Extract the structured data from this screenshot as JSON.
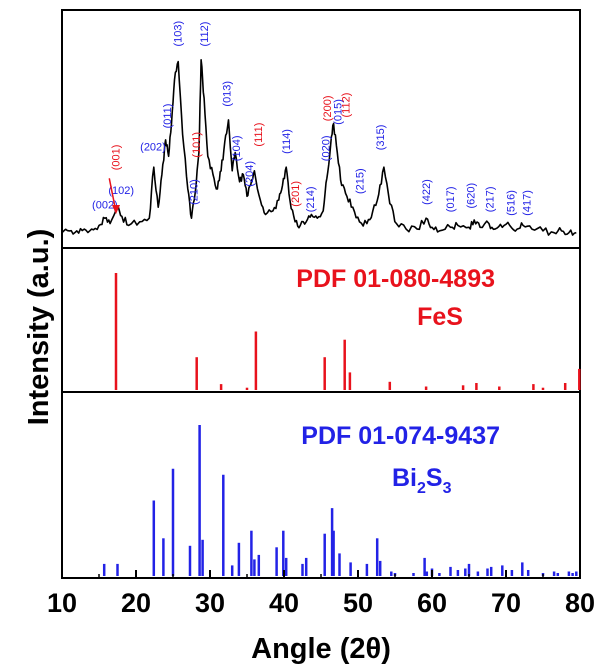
{
  "chart_data": {
    "type": "line",
    "xlabel": "Angle (2θ)",
    "ylabel": "Intensity (a.u.)",
    "xlim": [
      10,
      80
    ],
    "xticks": [
      "10",
      "20",
      "30",
      "40",
      "50",
      "60",
      "70",
      "80"
    ],
    "colors": {
      "pattern": "#000000",
      "fes": "#e8121c",
      "bi2s3": "#2222e6",
      "axes": "#000000"
    },
    "series": [
      {
        "panel": "experimental",
        "color": "#000000",
        "x": [
          10,
          11,
          12,
          13,
          14,
          15,
          15.8,
          16.5,
          17.4,
          18.1,
          19,
          20.5,
          21.8,
          22.4,
          23.0,
          23.5,
          24.0,
          24.4,
          24.8,
          25.2,
          25.7,
          26.3,
          27.0,
          27.5,
          28.0,
          28.5,
          28.8,
          29.2,
          29.7,
          30.4,
          31.0,
          31.5,
          32.0,
          32.5,
          33.0,
          33.4,
          34.0,
          34.5,
          35.0,
          35.5,
          36.0,
          36.8,
          37.5,
          38.5,
          39.3,
          39.8,
          40.3,
          40.8,
          41.5,
          42.2,
          43.0,
          43.7,
          44.5,
          45.3,
          45.8,
          46.3,
          46.7,
          47.2,
          47.8,
          48.5,
          49.3,
          50.2,
          51.2,
          52.0,
          52.8,
          53.5,
          54.3,
          55.2,
          56.5,
          58.0,
          59.2,
          60.0,
          61.0,
          62.5,
          63.5,
          65.0,
          65.7,
          66.5,
          67.7,
          68.5,
          69.5,
          70.5,
          71.5,
          72.3,
          73.5,
          75.0,
          76.5,
          77.5,
          78.5,
          79.5
        ],
        "y": [
          4,
          5,
          5,
          6,
          6,
          8,
          12,
          9,
          18,
          13,
          8,
          10,
          12,
          40,
          18,
          36,
          55,
          46,
          64,
          88,
          98,
          58,
          28,
          12,
          26,
          48,
          99,
          78,
          46,
          36,
          28,
          38,
          54,
          66,
          38,
          48,
          32,
          36,
          24,
          30,
          38,
          22,
          14,
          16,
          22,
          30,
          40,
          22,
          10,
          8,
          10,
          14,
          12,
          16,
          34,
          52,
          64,
          48,
          30,
          24,
          18,
          10,
          9,
          16,
          25,
          40,
          20,
          9,
          6,
          6,
          12,
          7,
          5,
          7,
          8,
          7,
          11,
          7,
          9,
          6,
          7,
          8,
          6,
          8,
          6,
          5,
          4,
          5,
          4,
          4
        ]
      },
      {
        "panel": "reference",
        "name": "FeS",
        "color": "#e8121c",
        "positions": [
          17.3,
          28.2,
          31.5,
          35.0,
          36.2,
          45.5,
          48.2,
          48.9,
          54.3,
          59.2,
          64.2,
          66.0,
          69.1,
          73.7,
          75.0,
          78.0,
          79.9
        ],
        "values": [
          100,
          28,
          5,
          2,
          50,
          28,
          43,
          15,
          7,
          3,
          4,
          6,
          3,
          5,
          2,
          6,
          18
        ]
      },
      {
        "panel": "reference",
        "name": "Bi2S3",
        "color": "#2222e6",
        "positions": [
          15.7,
          17.5,
          22.4,
          23.7,
          25.0,
          27.3,
          28.6,
          29.0,
          31.8,
          33.0,
          33.9,
          35.6,
          36.0,
          36.6,
          39.0,
          39.9,
          40.3,
          42.5,
          43.0,
          45.5,
          46.5,
          46.7,
          47.5,
          49.0,
          51.2,
          52.6,
          53.0,
          54.5,
          55.0,
          57.5,
          59.0,
          59.3,
          60.0,
          61.0,
          62.5,
          63.5,
          64.5,
          65.0,
          66.2,
          67.5,
          68.0,
          69.5,
          70.8,
          72.2,
          73.0,
          75.0,
          76.5,
          77.0,
          78.5,
          79.0,
          79.5
        ],
        "values": [
          8,
          8,
          50,
          25,
          71,
          20,
          100,
          24,
          67,
          7,
          22,
          30,
          11,
          14,
          19,
          30,
          12,
          8,
          12,
          28,
          45,
          30,
          15,
          9,
          8,
          25,
          10,
          3,
          2,
          2,
          12,
          3,
          5,
          2,
          6,
          4,
          5,
          8,
          3,
          5,
          6,
          7,
          4,
          9,
          4,
          2,
          3,
          2,
          3,
          2,
          3
        ]
      }
    ],
    "peak_labels": [
      {
        "text": "(002)",
        "x": 15.8,
        "color": "#2222e6",
        "vertical": false,
        "level": 14
      },
      {
        "text": "(102)",
        "x": 18.0,
        "color": "#2222e6",
        "vertical": false,
        "level": 22
      },
      {
        "text": "(001)",
        "x": 17.2,
        "color": "#e8121c",
        "vertical": true,
        "level": 35
      },
      {
        "text": "(202)",
        "x": 22.3,
        "color": "#2222e6",
        "vertical": false,
        "level": 46
      },
      {
        "text": "(011)",
        "x": 24.2,
        "color": "#2222e6",
        "vertical": true,
        "level": 58
      },
      {
        "text": "(103)",
        "x": 25.6,
        "color": "#2222e6",
        "vertical": true,
        "level": 103
      },
      {
        "text": "(210)",
        "x": 27.8,
        "color": "#2222e6",
        "vertical": true,
        "level": 16
      },
      {
        "text": "(101)",
        "x": 28.1,
        "color": "#e8121c",
        "vertical": true,
        "level": 42
      },
      {
        "text": "(112)",
        "x": 29.2,
        "color": "#2222e6",
        "vertical": true,
        "level": 103
      },
      {
        "text": "(013)",
        "x": 32.2,
        "color": "#2222e6",
        "vertical": true,
        "level": 70
      },
      {
        "text": "(104)",
        "x": 33.5,
        "color": "#2222e6",
        "vertical": true,
        "level": 40
      },
      {
        "text": "(204)",
        "x": 35.3,
        "color": "#2222e6",
        "vertical": true,
        "level": 26
      },
      {
        "text": "(111)",
        "x": 36.5,
        "color": "#e8121c",
        "vertical": true,
        "level": 48
      },
      {
        "text": "(114)",
        "x": 40.3,
        "color": "#2222e6",
        "vertical": true,
        "level": 44
      },
      {
        "text": "(201)",
        "x": 41.5,
        "color": "#e8121c",
        "vertical": true,
        "level": 15
      },
      {
        "text": "(214)",
        "x": 43.5,
        "color": "#2222e6",
        "vertical": true,
        "level": 12
      },
      {
        "text": "(020)",
        "x": 45.6,
        "color": "#2222e6",
        "vertical": true,
        "level": 40
      },
      {
        "text": "(200)",
        "x": 45.8,
        "color": "#e8121c",
        "vertical": true,
        "level": 62
      },
      {
        "text": "(015)",
        "x": 47.2,
        "color": "#2222e6",
        "vertical": true,
        "level": 60
      },
      {
        "text": "(112)",
        "x": 48.3,
        "color": "#e8121c",
        "vertical": true,
        "level": 64
      },
      {
        "text": "(215)",
        "x": 50.2,
        "color": "#2222e6",
        "vertical": true,
        "level": 22
      },
      {
        "text": "(315)",
        "x": 53.0,
        "color": "#2222e6",
        "vertical": true,
        "level": 46
      },
      {
        "text": "(422)",
        "x": 59.2,
        "color": "#2222e6",
        "vertical": true,
        "level": 16
      },
      {
        "text": "(017)",
        "x": 62.4,
        "color": "#2222e6",
        "vertical": true,
        "level": 12
      },
      {
        "text": "(620)",
        "x": 65.2,
        "color": "#2222e6",
        "vertical": true,
        "level": 14
      },
      {
        "text": "(217)",
        "x": 67.8,
        "color": "#2222e6",
        "vertical": true,
        "level": 12
      },
      {
        "text": "(516)",
        "x": 70.6,
        "color": "#2222e6",
        "vertical": true,
        "level": 10
      },
      {
        "text": "(417)",
        "x": 72.8,
        "color": "#2222e6",
        "vertical": true,
        "level": 10
      }
    ],
    "annotations": {
      "fes_card": "PDF 01-080-4893",
      "fes_name": "FeS",
      "bi2s3_card": "PDF 01-074-9437",
      "bi2s3_name_main": "Bi",
      "bi2s3_sub1": "2",
      "bi2s3_mid": "S",
      "bi2s3_sub2": "3"
    }
  }
}
